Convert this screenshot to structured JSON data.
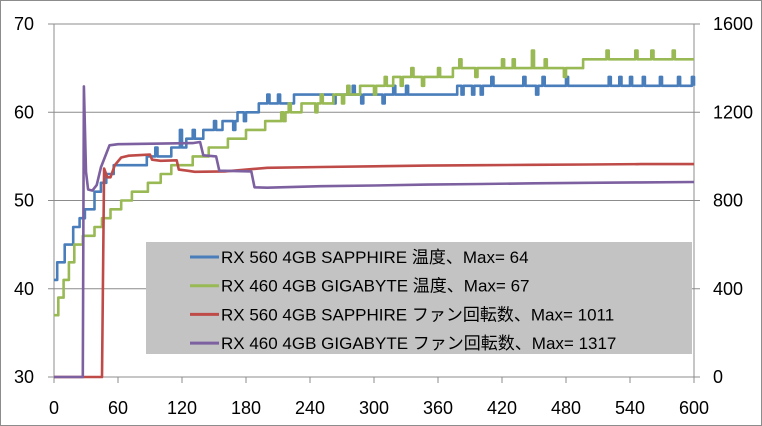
{
  "chart_data": {
    "type": "line",
    "title": "",
    "xlabel": "",
    "ylabel": "",
    "y2label": "",
    "xlim": [
      0,
      600
    ],
    "ylim": [
      30,
      70
    ],
    "y2lim": [
      0,
      1600
    ],
    "x_ticks": [
      "0",
      "60",
      "120",
      "180",
      "240",
      "300",
      "360",
      "420",
      "480",
      "540",
      "600"
    ],
    "y_ticks": [
      "30",
      "40",
      "50",
      "60",
      "70"
    ],
    "y2_ticks": [
      "0",
      "400",
      "800",
      "1200",
      "1600"
    ],
    "grid": true,
    "legend_position": "center-bottom",
    "series": [
      {
        "name": "RX 560 4GB SAPPHIRE 温度、Max= 64",
        "axis": "left",
        "color": "#4a7ebb",
        "kind": "step",
        "steps": [
          [
            0,
            41
          ],
          [
            3,
            43
          ],
          [
            10,
            45
          ],
          [
            18,
            47
          ],
          [
            24,
            48
          ],
          [
            29,
            49
          ],
          [
            38,
            51
          ],
          [
            44,
            52
          ],
          [
            49,
            53
          ],
          [
            56,
            54
          ],
          [
            86,
            55
          ],
          [
            110,
            56
          ],
          [
            124,
            57
          ],
          [
            140,
            58
          ],
          [
            158,
            59
          ],
          [
            172,
            60
          ],
          [
            192,
            61
          ],
          [
            225,
            62
          ],
          [
            378,
            63
          ]
        ],
        "spikes": [
          [
            85,
            54
          ],
          [
            95,
            56
          ],
          [
            118,
            58
          ],
          [
            130,
            58
          ],
          [
            150,
            59
          ],
          [
            168,
            58
          ],
          [
            178,
            59
          ],
          [
            200,
            62
          ],
          [
            210,
            62
          ],
          [
            215,
            61
          ],
          [
            255,
            62
          ],
          [
            262,
            61
          ],
          [
            280,
            63
          ],
          [
            288,
            61
          ],
          [
            300,
            62
          ],
          [
            308,
            61
          ],
          [
            318,
            63
          ],
          [
            330,
            63
          ],
          [
            340,
            62
          ],
          [
            348,
            62
          ],
          [
            356,
            62
          ],
          [
            382,
            62
          ],
          [
            392,
            62
          ],
          [
            400,
            62
          ],
          [
            440,
            62
          ],
          [
            452,
            62
          ],
          [
            410,
            64
          ],
          [
            440,
            64
          ],
          [
            458,
            64
          ],
          [
            480,
            64
          ],
          [
            520,
            64
          ],
          [
            530,
            64
          ],
          [
            540,
            64
          ],
          [
            552,
            64
          ],
          [
            568,
            64
          ],
          [
            585,
            64
          ],
          [
            598,
            64
          ]
        ]
      },
      {
        "name": "RX 460 4GB GIGABYTE 温度、Max= 67",
        "axis": "left",
        "color": "#98b954",
        "kind": "step",
        "steps": [
          [
            0,
            37
          ],
          [
            4,
            39
          ],
          [
            9,
            41
          ],
          [
            14,
            43
          ],
          [
            19,
            45
          ],
          [
            27,
            46
          ],
          [
            38,
            47
          ],
          [
            45,
            48
          ],
          [
            53,
            49
          ],
          [
            63,
            50
          ],
          [
            73,
            51
          ],
          [
            88,
            52
          ],
          [
            100,
            53
          ],
          [
            110,
            54
          ],
          [
            130,
            55
          ],
          [
            145,
            56
          ],
          [
            163,
            57
          ],
          [
            180,
            58
          ],
          [
            198,
            59
          ],
          [
            213,
            60
          ],
          [
            232,
            61
          ],
          [
            262,
            62
          ],
          [
            287,
            63
          ],
          [
            318,
            64
          ],
          [
            374,
            65
          ],
          [
            496,
            66
          ]
        ],
        "spikes": [
          [
            215,
            59
          ],
          [
            220,
            61
          ],
          [
            245,
            60
          ],
          [
            250,
            62
          ],
          [
            270,
            61
          ],
          [
            275,
            63
          ],
          [
            300,
            62
          ],
          [
            310,
            64
          ],
          [
            325,
            63
          ],
          [
            335,
            65
          ],
          [
            345,
            63
          ],
          [
            360,
            65
          ],
          [
            380,
            66
          ],
          [
            395,
            64
          ],
          [
            420,
            66
          ],
          [
            430,
            66
          ],
          [
            448,
            67
          ],
          [
            460,
            66
          ],
          [
            478,
            64
          ],
          [
            490,
            65
          ],
          [
            518,
            67
          ],
          [
            545,
            67
          ],
          [
            560,
            67
          ],
          [
            580,
            67
          ]
        ]
      },
      {
        "name": "RX 560 4GB SAPPHIRE ファン回転数、Max=  1011",
        "axis": "right",
        "color": "#be4b48",
        "kind": "line",
        "points": [
          [
            0,
            0
          ],
          [
            44,
            0
          ],
          [
            45,
            0
          ],
          [
            47,
            945
          ],
          [
            50,
            905
          ],
          [
            53,
            905
          ],
          [
            57,
            960
          ],
          [
            63,
            995
          ],
          [
            70,
            1003
          ],
          [
            90,
            1008
          ],
          [
            92,
            985
          ],
          [
            100,
            980
          ],
          [
            115,
            982
          ],
          [
            117,
            940
          ],
          [
            125,
            935
          ],
          [
            132,
            930
          ],
          [
            160,
            932
          ],
          [
            200,
            948
          ],
          [
            250,
            952
          ],
          [
            300,
            955
          ],
          [
            350,
            958
          ],
          [
            400,
            960
          ],
          [
            450,
            962
          ],
          [
            500,
            963
          ],
          [
            550,
            965
          ],
          [
            600,
            965
          ]
        ]
      },
      {
        "name": "RX 460 4GB GIGABYTE ファン回転数、Max=  1317",
        "axis": "right",
        "color": "#7d60a0",
        "kind": "line",
        "points": [
          [
            0,
            0
          ],
          [
            27,
            0
          ],
          [
            28,
            1317
          ],
          [
            30,
            930
          ],
          [
            32,
            850
          ],
          [
            36,
            845
          ],
          [
            40,
            870
          ],
          [
            44,
            950
          ],
          [
            48,
            1000
          ],
          [
            52,
            1050
          ],
          [
            60,
            1055
          ],
          [
            100,
            1058
          ],
          [
            130,
            1060
          ],
          [
            137,
            1065
          ],
          [
            140,
            1005
          ],
          [
            152,
            1000
          ],
          [
            155,
            935
          ],
          [
            185,
            932
          ],
          [
            188,
            860
          ],
          [
            200,
            858
          ],
          [
            250,
            865
          ],
          [
            300,
            868
          ],
          [
            350,
            872
          ],
          [
            400,
            875
          ],
          [
            450,
            878
          ],
          [
            500,
            880
          ],
          [
            550,
            882
          ],
          [
            600,
            884
          ]
        ]
      }
    ]
  }
}
